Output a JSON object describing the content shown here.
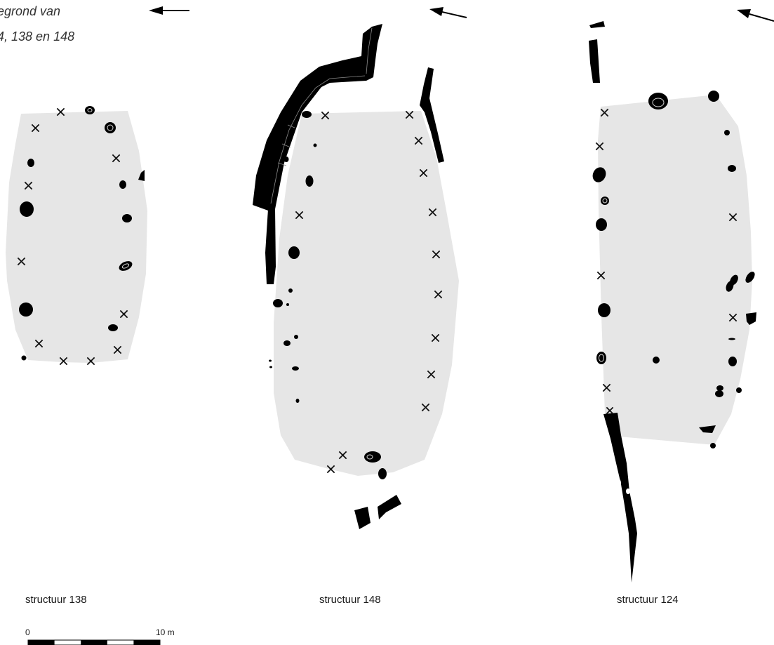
{
  "caption": {
    "line1": "egrond van",
    "line2": "4, 138 en 148",
    "line3": "."
  },
  "structures": [
    {
      "id": "138",
      "label": "structuur 138"
    },
    {
      "id": "148",
      "label": "structuur 148"
    },
    {
      "id": "124",
      "label": "structuur 124"
    }
  ],
  "scale_bar": {
    "start_label": "0",
    "end_label": "10 m",
    "segments": 5
  },
  "icons": {
    "north_arrow": "north-arrow-icon",
    "posthole_absent": "cross-marker-icon"
  },
  "colors": {
    "floor_plan": "#e6e6e6",
    "features": "#000000",
    "markers": "#111111"
  }
}
